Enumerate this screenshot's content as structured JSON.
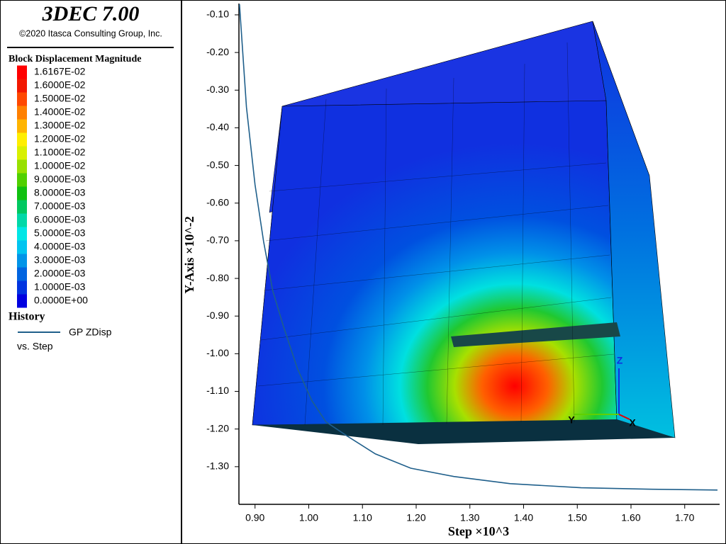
{
  "header": {
    "title": "3DEC 7.00",
    "copyright": "©2020 Itasca Consulting Group, Inc."
  },
  "contour_legend": {
    "title": "Block Displacement Magnitude",
    "levels": [
      {
        "label": "1.6167E-02",
        "color": "#ff0000"
      },
      {
        "label": "1.6000E-02",
        "color": "#f21800"
      },
      {
        "label": "1.5000E-02",
        "color": "#ff4800"
      },
      {
        "label": "1.4000E-02",
        "color": "#ff8000"
      },
      {
        "label": "1.3000E-02",
        "color": "#ffb400"
      },
      {
        "label": "1.2000E-02",
        "color": "#ffee00"
      },
      {
        "label": "1.1000E-02",
        "color": "#d8f000"
      },
      {
        "label": "1.0000E-02",
        "color": "#98e000"
      },
      {
        "label": "9.0000E-03",
        "color": "#50d000"
      },
      {
        "label": "8.0000E-03",
        "color": "#10c010"
      },
      {
        "label": "7.0000E-03",
        "color": "#00c860"
      },
      {
        "label": "6.0000E-03",
        "color": "#00d8a8"
      },
      {
        "label": "5.0000E-03",
        "color": "#00e6e6"
      },
      {
        "label": "4.0000E-03",
        "color": "#00c4f0"
      },
      {
        "label": "3.0000E-03",
        "color": "#0094e8"
      },
      {
        "label": "2.0000E-03",
        "color": "#0064e0"
      },
      {
        "label": "1.0000E-03",
        "color": "#0034e0"
      },
      {
        "label": "0.0000E+00",
        "color": "#0000e0"
      }
    ]
  },
  "history_legend": {
    "title": "History",
    "subtitle": "vs. Step"
  },
  "triad": {
    "z": "Z",
    "y": "Y",
    "x": "X"
  },
  "chart_data": {
    "type": "line",
    "x_label": "Step ×10^3",
    "y_label": "Y-Axis ×10^-2",
    "xlim": [
      0.87,
      1.765
    ],
    "ylim": [
      -1.4,
      -0.07
    ],
    "xticks": [
      {
        "value": 0.9,
        "label": "0.90"
      },
      {
        "value": 1.0,
        "label": "1.00"
      },
      {
        "value": 1.1,
        "label": "1.10"
      },
      {
        "value": 1.2,
        "label": "1.20"
      },
      {
        "value": 1.3,
        "label": "1.30"
      },
      {
        "value": 1.4,
        "label": "1.40"
      },
      {
        "value": 1.5,
        "label": "1.50"
      },
      {
        "value": 1.6,
        "label": "1.60"
      },
      {
        "value": 1.7,
        "label": "1.70"
      }
    ],
    "yticks": [
      {
        "value": -0.1,
        "label": "-0.10"
      },
      {
        "value": -0.2,
        "label": "-0.20"
      },
      {
        "value": -0.3,
        "label": "-0.30"
      },
      {
        "value": -0.4,
        "label": "-0.40"
      },
      {
        "value": -0.5,
        "label": "-0.50"
      },
      {
        "value": -0.6,
        "label": "-0.60"
      },
      {
        "value": -0.7,
        "label": "-0.70"
      },
      {
        "value": -0.8,
        "label": "-0.80"
      },
      {
        "value": -0.9,
        "label": "-0.90"
      },
      {
        "value": -1.0,
        "label": "-1.00"
      },
      {
        "value": -1.1,
        "label": "-1.10"
      },
      {
        "value": -1.2,
        "label": "-1.20"
      },
      {
        "value": -1.3,
        "label": "-1.30"
      }
    ],
    "x": [
      0.871,
      0.876,
      0.884,
      0.9,
      0.916,
      0.933,
      0.953,
      0.979,
      1.006,
      1.032,
      1.072,
      1.124,
      1.19,
      1.27,
      1.375,
      1.507,
      1.639,
      1.761
    ],
    "series": [
      {
        "name": "GP ZDisp",
        "color": "#1f5f8b",
        "values": [
          -0.072,
          -0.175,
          -0.345,
          -0.551,
          -0.702,
          -0.833,
          -0.928,
          -1.04,
          -1.125,
          -1.181,
          -1.219,
          -1.266,
          -1.304,
          -1.326,
          -1.345,
          -1.356,
          -1.36,
          -1.362
        ]
      }
    ]
  }
}
